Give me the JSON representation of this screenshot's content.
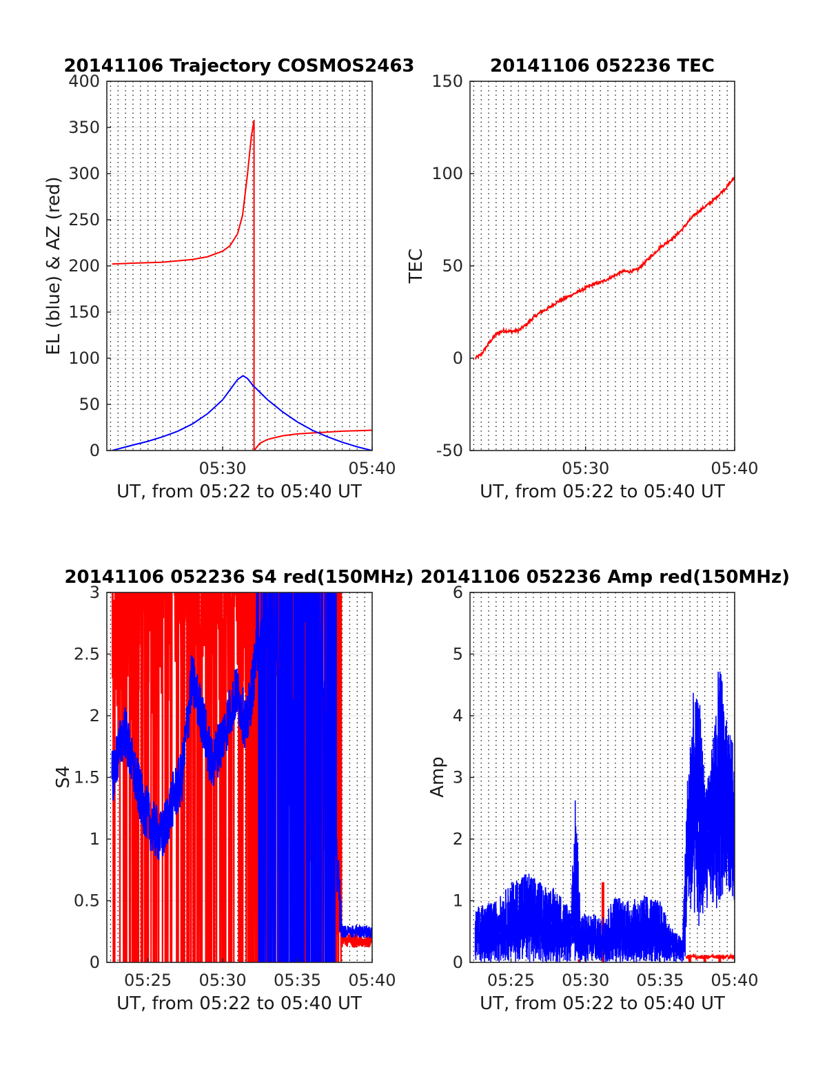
{
  "chart_data": [
    {
      "id": "traj",
      "type": "line",
      "title": "20141106 Trajectory COSMOS2463",
      "xlabel": "UT, from 05:22 to 05:40 UT",
      "ylabel": "EL (blue) & AZ (red)",
      "xlim": [
        "05:22:15",
        "05:40:00"
      ],
      "ylim": [
        0,
        400
      ],
      "yticks": [
        0,
        50,
        100,
        150,
        200,
        250,
        300,
        350,
        400
      ],
      "xticks": [
        "05:30",
        "05:40"
      ],
      "grid": true,
      "series": [
        {
          "color": "#ff0000",
          "points": [
            [
              "05:22:36",
              202
            ],
            [
              "05:24:00",
              203
            ],
            [
              "05:26:00",
              204
            ],
            [
              "05:28:00",
              207
            ],
            [
              "05:29:00",
              210
            ],
            [
              "05:30:00",
              216
            ],
            [
              "05:30:30",
              222
            ],
            [
              "05:31:00",
              235
            ],
            [
              "05:31:20",
              255
            ],
            [
              "05:31:40",
              300
            ],
            [
              "05:31:55",
              340
            ],
            [
              "05:32:06",
              358
            ],
            [
              "05:32:06",
              0
            ],
            [
              "05:32:30",
              8
            ],
            [
              "05:33:00",
              12
            ],
            [
              "05:34:00",
              16
            ],
            [
              "05:35:00",
              18
            ],
            [
              "05:36:00",
              19
            ],
            [
              "05:37:00",
              20
            ],
            [
              "05:38:00",
              21
            ],
            [
              "05:39:00",
              21.5
            ],
            [
              "05:40:00",
              22
            ]
          ]
        },
        {
          "color": "#0000ff",
          "points": [
            [
              "05:22:36",
              0
            ],
            [
              "05:24:00",
              6
            ],
            [
              "05:25:00",
              10
            ],
            [
              "05:26:00",
              15
            ],
            [
              "05:27:00",
              21
            ],
            [
              "05:28:00",
              29
            ],
            [
              "05:29:00",
              40
            ],
            [
              "05:30:00",
              55
            ],
            [
              "05:30:30",
              66
            ],
            [
              "05:31:00",
              77
            ],
            [
              "05:31:22",
              81
            ],
            [
              "05:31:40",
              78
            ],
            [
              "05:32:00",
              71
            ],
            [
              "05:33:00",
              55
            ],
            [
              "05:34:00",
              42
            ],
            [
              "05:35:00",
              31
            ],
            [
              "05:36:00",
              22
            ],
            [
              "05:37:00",
              15
            ],
            [
              "05:38:00",
              9
            ],
            [
              "05:39:00",
              4
            ],
            [
              "05:40:00",
              0
            ]
          ]
        }
      ]
    },
    {
      "id": "tec",
      "type": "line",
      "title": "20141106 052236 TEC",
      "xlabel": "UT, from 05:22 to 05:40 UT",
      "ylabel": "TEC",
      "xlim": [
        "05:22:15",
        "05:40:00"
      ],
      "ylim": [
        -50,
        150
      ],
      "yticks": [
        -50,
        0,
        50,
        100,
        150
      ],
      "xticks": [
        "05:30",
        "05:40"
      ],
      "grid": true,
      "series": [
        {
          "color": "#ff0000",
          "points": [
            [
              "05:22:36",
              0
            ],
            [
              "05:23:00",
              2
            ],
            [
              "05:23:30",
              8
            ],
            [
              "05:24:00",
              13
            ],
            [
              "05:24:30",
              15
            ],
            [
              "05:25:00",
              14.5
            ],
            [
              "05:25:30",
              15
            ],
            [
              "05:26:00",
              18
            ],
            [
              "05:26:30",
              22
            ],
            [
              "05:27:00",
              25
            ],
            [
              "05:27:30",
              27
            ],
            [
              "05:28:00",
              30
            ],
            [
              "05:28:30",
              32
            ],
            [
              "05:29:00",
              34
            ],
            [
              "05:29:30",
              36
            ],
            [
              "05:30:00",
              38
            ],
            [
              "05:30:30",
              40
            ],
            [
              "05:31:00",
              41
            ],
            [
              "05:31:30",
              43
            ],
            [
              "05:32:00",
              45
            ],
            [
              "05:32:30",
              47
            ],
            [
              "05:33:00",
              47
            ],
            [
              "05:33:30",
              48
            ],
            [
              "05:34:00",
              52
            ],
            [
              "05:34:30",
              56
            ],
            [
              "05:35:00",
              60
            ],
            [
              "05:35:30",
              63
            ],
            [
              "05:36:00",
              66
            ],
            [
              "05:36:30",
              70
            ],
            [
              "05:37:00",
              75
            ],
            [
              "05:37:30",
              79
            ],
            [
              "05:38:00",
              82
            ],
            [
              "05:38:30",
              85
            ],
            [
              "05:39:00",
              89
            ],
            [
              "05:39:30",
              93
            ],
            [
              "05:40:00",
              98
            ]
          ]
        }
      ]
    },
    {
      "id": "s4",
      "type": "line",
      "title": "20141106 052236 S4 red(150MHz)",
      "xlabel": "UT, from 05:22 to 05:40 UT",
      "ylabel": "S4",
      "xlim": [
        "05:22:15",
        "05:40:00"
      ],
      "ylim": [
        0,
        3
      ],
      "yticks": [
        0,
        0.5,
        1,
        1.5,
        2,
        2.5,
        3
      ],
      "xticks": [
        "05:25",
        "05:30",
        "05:35",
        "05:40"
      ],
      "grid": true,
      "series": [
        {
          "color": "#ff0000",
          "start": "05:22:36",
          "end": "05:40:00",
          "base": [
            [
              0,
              2.3
            ],
            [
              12,
              2.6
            ],
            [
              20,
              2.8
            ],
            [
              40,
              2.7
            ],
            [
              50,
              2.9
            ],
            [
              66,
              3
            ],
            [
              80,
              1.5
            ],
            [
              92,
              0.2
            ],
            [
              101,
              0.18
            ],
            [
              110,
              0.17
            ]
          ],
          "noise": 1.6,
          "note": "saturated"
        },
        {
          "color": "#0000ff",
          "start": "05:22:36",
          "end": "05:40:00",
          "base": [
            [
              0,
              1.5
            ],
            [
              5,
              1.9
            ],
            [
              8,
              1.6
            ],
            [
              12,
              1.3
            ],
            [
              16,
              1.1
            ],
            [
              20,
              1.0
            ],
            [
              24,
              1.3
            ],
            [
              28,
              1.5
            ],
            [
              32,
              2.3
            ],
            [
              36,
              2.0
            ],
            [
              40,
              1.6
            ],
            [
              44,
              1.8
            ],
            [
              50,
              2.2
            ],
            [
              54,
              1.9
            ],
            [
              58,
              2.5
            ],
            [
              62,
              2.8
            ],
            [
              66,
              2.6
            ],
            [
              70,
              1.0
            ],
            [
              75,
              2.8
            ],
            [
              82,
              3
            ],
            [
              92,
              0.3
            ],
            [
              96,
              0.26
            ],
            [
              101,
              0.25
            ],
            [
              110,
              0.25
            ]
          ],
          "noise": 0.45
        }
      ]
    },
    {
      "id": "amp",
      "type": "line",
      "title": "20141106 052236 Amp red(150MHz)",
      "xlabel": "UT, from 05:22 to 05:40 UT",
      "ylabel": "Amp",
      "xlim": [
        "05:22:15",
        "05:40:00"
      ],
      "ylim": [
        0,
        6
      ],
      "yticks": [
        0,
        1,
        2,
        3,
        4,
        5,
        6
      ],
      "xticks": [
        "05:25",
        "05:30",
        "05:35",
        "05:40"
      ],
      "grid": true,
      "series": [
        {
          "color": "#ff0000",
          "spikes": [
            [
              "05:29:35",
              0.05
            ],
            [
              "05:31:10",
              1.3
            ],
            [
              "05:37:00",
              0.1
            ],
            [
              "05:38:00",
              0.1
            ],
            [
              "05:39:00",
              0.1
            ]
          ]
        },
        {
          "color": "#0000ff",
          "start": "05:22:36",
          "end": "05:40:00",
          "envelope": [
            [
              "05:22:36",
              0.9
            ],
            [
              "05:24:00",
              1.0
            ],
            [
              "05:25:00",
              1.3
            ],
            [
              "05:26:00",
              1.5
            ],
            [
              "05:27:00",
              1.3
            ],
            [
              "05:28:00",
              1.2
            ],
            [
              "05:29:00",
              0.9
            ],
            [
              "05:29:20",
              2.8
            ],
            [
              "05:29:40",
              0.8
            ],
            [
              "05:30:30",
              0.8
            ],
            [
              "05:31:00",
              0.7
            ],
            [
              "05:32:00",
              1.1
            ],
            [
              "05:33:00",
              1.0
            ],
            [
              "05:34:00",
              1.1
            ],
            [
              "05:35:00",
              1.0
            ],
            [
              "05:35:30",
              0.7
            ],
            [
              "05:36:00",
              0.5
            ],
            [
              "05:36:30",
              0.4
            ],
            [
              "05:36:50",
              3.0
            ],
            [
              "05:37:10",
              4.4
            ],
            [
              "05:37:40",
              4.2
            ],
            [
              "05:38:00",
              3.0
            ],
            [
              "05:38:30",
              3.5
            ],
            [
              "05:39:00",
              5.1
            ],
            [
              "05:39:20",
              4.0
            ],
            [
              "05:39:40",
              3.8
            ],
            [
              "05:40:00",
              3.4
            ]
          ],
          "floor": [
            [
              "05:22:36",
              0.0
            ],
            [
              "05:36:40",
              0.0
            ],
            [
              "05:36:50",
              0.9
            ],
            [
              "05:37:40",
              0.5
            ],
            [
              "05:38:20",
              1.0
            ],
            [
              "05:38:40",
              0.8
            ],
            [
              "05:39:00",
              0.9
            ],
            [
              "05:39:30",
              1.2
            ],
            [
              "05:40:00",
              1.0
            ]
          ]
        }
      ]
    }
  ]
}
